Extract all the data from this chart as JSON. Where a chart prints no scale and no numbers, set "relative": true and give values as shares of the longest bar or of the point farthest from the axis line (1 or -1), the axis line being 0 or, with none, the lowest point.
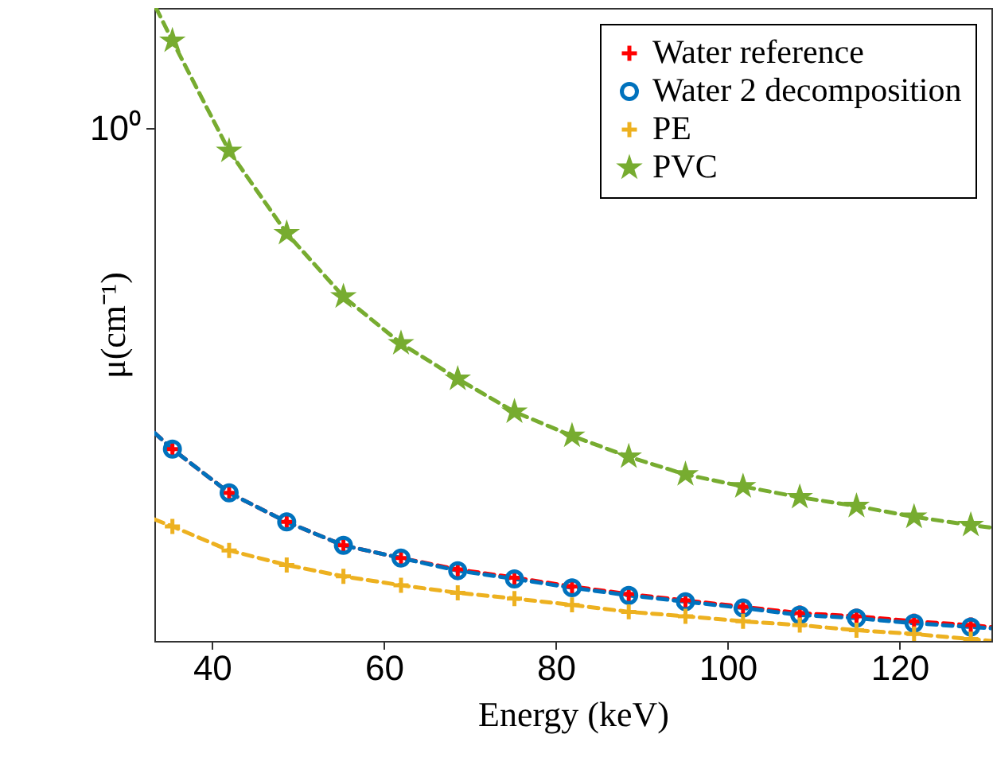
{
  "chart_data": {
    "type": "scatter",
    "relative": true,
    "xlabel": "Energy (keV)",
    "ylabel": "μ(cm⁻¹)",
    "grid": false,
    "legend": "top right",
    "line_style": "dashed",
    "annotations": [
      "10⁰"
    ],
    "x": [
      35.4,
      42,
      48.7,
      55.3,
      62,
      68.6,
      75.2,
      81.9,
      88.5,
      95.1,
      101.8,
      108.4,
      115,
      121.7,
      128.3
    ],
    "xlim": [
      33.3,
      130.7
    ],
    "xticks": [
      40,
      60,
      80,
      100,
      120
    ],
    "series": [
      {
        "type": "line",
        "color": "#ff0000",
        "x": [
          33.3,
          35.4,
          42,
          48.7,
          55.3,
          62,
          68.6,
          75.2,
          81.9,
          88.5,
          95.1,
          101.8,
          108.4,
          115,
          121.7,
          128.3,
          130.7
        ],
        "values": [
          0.329,
          0.303,
          0.234,
          0.188,
          0.151,
          0.131,
          0.113,
          0.1,
          0.086,
          0.074,
          0.064,
          0.054,
          0.044,
          0.039,
          0.031,
          0.025,
          0.022
        ]
      },
      {
        "type": "line",
        "color": "#0072bd",
        "x": [
          33.3,
          35.4,
          42,
          48.7,
          55.3,
          62,
          68.6,
          75.2,
          81.9,
          88.5,
          95.1,
          101.8,
          108.4,
          115,
          121.7,
          128.3,
          130.7
        ],
        "values": [
          0.329,
          0.303,
          0.234,
          0.188,
          0.151,
          0.131,
          0.111,
          0.098,
          0.084,
          0.072,
          0.062,
          0.052,
          0.041,
          0.036,
          0.028,
          0.022,
          0.02
        ]
      },
      {
        "type": "line",
        "color": "#edb120",
        "x": [
          33.3,
          35.4,
          42,
          48.7,
          55.3,
          62,
          68.6,
          75.2,
          81.9,
          88.5,
          95.1,
          101.8,
          108.4,
          115,
          121.7,
          128.3,
          130.7
        ],
        "values": [
          0.192,
          0.181,
          0.143,
          0.12,
          0.102,
          0.088,
          0.076,
          0.067,
          0.057,
          0.046,
          0.039,
          0.031,
          0.025,
          0.017,
          0.011,
          0.003,
          0
        ]
      },
      {
        "type": "line",
        "color": "#77ac30",
        "x": [
          33.5,
          35.4,
          42,
          48.7,
          55.3,
          62,
          68.6,
          75.2,
          81.9,
          88.5,
          95.1,
          101.8,
          108.4,
          115,
          121.7,
          128.3,
          130.7
        ],
        "values": [
          1,
          0.948,
          0.774,
          0.644,
          0.544,
          0.47,
          0.414,
          0.362,
          0.324,
          0.291,
          0.263,
          0.244,
          0.227,
          0.213,
          0.196,
          0.183,
          0.179
        ]
      },
      {
        "name": "Water reference",
        "color": "#ff0000",
        "marker": "cross",
        "values": [
          0.303,
          0.234,
          0.188,
          0.151,
          0.131,
          0.113,
          0.1,
          0.086,
          0.074,
          0.064,
          0.054,
          0.044,
          0.039,
          0.031,
          0.025
        ]
      },
      {
        "name": "Water 2 decomposition",
        "color": "#0072bd",
        "marker": "circle",
        "values": [
          0.303,
          0.234,
          0.188,
          0.151,
          0.131,
          0.111,
          0.098,
          0.084,
          0.072,
          0.062,
          0.052,
          0.041,
          0.036,
          0.028,
          0.022
        ]
      },
      {
        "name": "PE",
        "color": "#edb120",
        "marker": "cross",
        "values": [
          0.181,
          0.143,
          0.12,
          0.102,
          0.088,
          0.076,
          0.067,
          0.057,
          0.046,
          0.039,
          0.031,
          0.025,
          0.017,
          0.011,
          0.003
        ]
      },
      {
        "name": "PVC",
        "color": "#77ac30",
        "marker": "star",
        "values": [
          0.948,
          0.774,
          0.644,
          0.544,
          0.47,
          0.414,
          0.362,
          0.324,
          0.291,
          0.263,
          0.244,
          0.227,
          0.213,
          0.196,
          0.183
        ]
      }
    ]
  }
}
